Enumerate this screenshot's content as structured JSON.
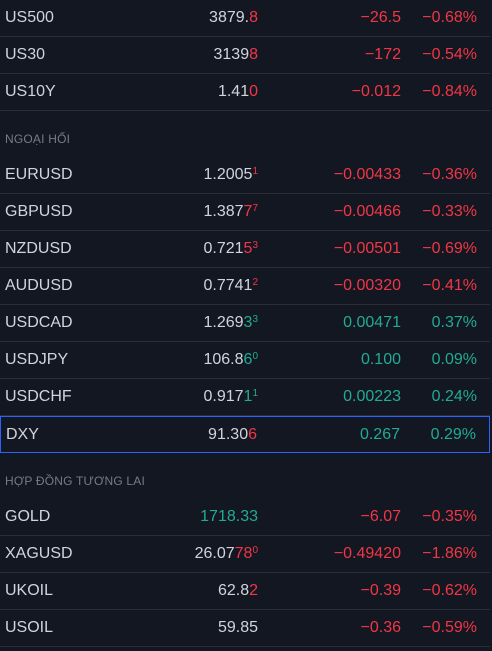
{
  "watchlist": [
    {
      "type": "row",
      "symbol": "US500",
      "last_main": "3879.",
      "last_hl": "8",
      "last_sup": "",
      "last_color": "default",
      "hl_color": "down",
      "change": "−26.5",
      "percent": "−0.68%",
      "direction": "down"
    },
    {
      "type": "row",
      "symbol": "US30",
      "last_main": "3139",
      "last_hl": "8",
      "last_sup": "",
      "last_color": "default",
      "hl_color": "down",
      "change": "−172",
      "percent": "−0.54%",
      "direction": "down"
    },
    {
      "type": "row",
      "symbol": "US10Y",
      "last_main": "1.41",
      "last_hl": "0",
      "last_sup": "",
      "last_color": "default",
      "hl_color": "down",
      "change": "−0.012",
      "percent": "−0.84%",
      "direction": "down"
    },
    {
      "type": "section",
      "title": "NGOẠI HỐI"
    },
    {
      "type": "row",
      "symbol": "EURUSD",
      "last_main": "1.2005",
      "last_hl": "",
      "last_sup": "1",
      "last_color": "default",
      "hl_color": "down",
      "change": "−0.00433",
      "percent": "−0.36%",
      "direction": "down"
    },
    {
      "type": "row",
      "symbol": "GBPUSD",
      "last_main": "1.387",
      "last_hl": "7",
      "last_sup": "7",
      "last_color": "default",
      "hl_color": "down",
      "change": "−0.00466",
      "percent": "−0.33%",
      "direction": "down"
    },
    {
      "type": "row",
      "symbol": "NZDUSD",
      "last_main": "0.721",
      "last_hl": "5",
      "last_sup": "3",
      "last_color": "default",
      "hl_color": "down",
      "change": "−0.00501",
      "percent": "−0.69%",
      "direction": "down"
    },
    {
      "type": "row",
      "symbol": "AUDUSD",
      "last_main": "0.7741",
      "last_hl": "",
      "last_sup": "2",
      "last_color": "default",
      "hl_color": "down",
      "change": "−0.00320",
      "percent": "−0.41%",
      "direction": "down"
    },
    {
      "type": "row",
      "symbol": "USDCAD",
      "last_main": "1.269",
      "last_hl": "3",
      "last_sup": "3",
      "last_color": "default",
      "hl_color": "up",
      "change": "0.00471",
      "percent": "0.37%",
      "direction": "up"
    },
    {
      "type": "row",
      "symbol": "USDJPY",
      "last_main": "106.8",
      "last_hl": "6",
      "last_sup": "0",
      "last_color": "default",
      "hl_color": "up",
      "change": "0.100",
      "percent": "0.09%",
      "direction": "up"
    },
    {
      "type": "row",
      "symbol": "USDCHF",
      "last_main": "0.917",
      "last_hl": "1",
      "last_sup": "1",
      "last_color": "default",
      "hl_color": "up",
      "change": "0.00223",
      "percent": "0.24%",
      "direction": "up"
    },
    {
      "type": "row",
      "symbol": "DXY",
      "last_main": "91.30",
      "last_hl": "6",
      "last_sup": "",
      "last_color": "default",
      "hl_color": "down",
      "change": "0.267",
      "percent": "0.29%",
      "direction": "up",
      "selected": true
    },
    {
      "type": "section",
      "title": "HỢP ĐỒNG TƯƠNG LAI"
    },
    {
      "type": "row",
      "symbol": "GOLD",
      "last_main": "1718.33",
      "last_hl": "",
      "last_sup": "",
      "last_color": "up",
      "hl_color": "up",
      "change": "−6.07",
      "percent": "−0.35%",
      "direction": "down"
    },
    {
      "type": "row",
      "symbol": "XAGUSD",
      "last_main": "26.07",
      "last_hl": "78",
      "last_sup": "0",
      "last_color": "default",
      "hl_color": "down",
      "change": "−0.49420",
      "percent": "−1.86%",
      "direction": "down"
    },
    {
      "type": "row",
      "symbol": "UKOIL",
      "last_main": "62.8",
      "last_hl": "2",
      "last_sup": "",
      "last_color": "default",
      "hl_color": "down",
      "change": "−0.39",
      "percent": "−0.62%",
      "direction": "down"
    },
    {
      "type": "row",
      "symbol": "USOIL",
      "last_main": "59.85",
      "last_hl": "",
      "last_sup": "",
      "last_color": "default",
      "hl_color": "down",
      "change": "−0.36",
      "percent": "−0.59%",
      "direction": "down"
    }
  ],
  "colors": {
    "background": "#131722",
    "text": "#d1d4dc",
    "down": "#f23645",
    "up": "#22ab94",
    "selected_border": "#2962ff",
    "section_text": "#787b86"
  }
}
